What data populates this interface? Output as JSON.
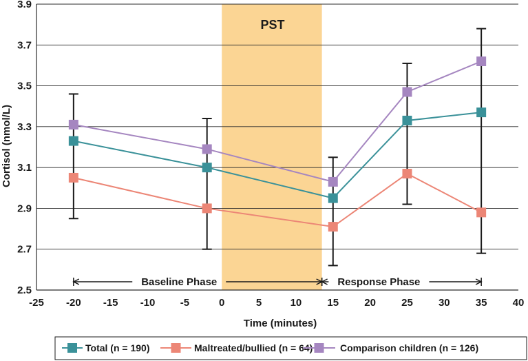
{
  "chart_data": {
    "type": "line",
    "xlabel": "Time (minutes)",
    "ylabel": "Cortisol (nmol/L)",
    "xlim": [
      -25,
      40
    ],
    "ylim": [
      2.5,
      3.9
    ],
    "x_ticks": [
      -25,
      -20,
      -15,
      -10,
      -5,
      0,
      5,
      10,
      15,
      20,
      25,
      30,
      35,
      40
    ],
    "y_ticks": [
      2.5,
      2.7,
      2.9,
      3.1,
      3.3,
      3.5,
      3.7,
      3.9
    ],
    "y_tick_labels": [
      "2.5",
      "2.7",
      "2.9",
      "3.1",
      "3.3",
      "3.5",
      "3.7",
      "3.9"
    ],
    "grid": "horizontal",
    "shaded_region": {
      "label": "PST",
      "x_range": [
        0,
        13.5
      ],
      "color": "#fbd594"
    },
    "phases": [
      {
        "label": "Baseline Phase",
        "x_range": [
          -20,
          13.5
        ]
      },
      {
        "label": "Response Phase",
        "x_range": [
          13.5,
          35
        ]
      }
    ],
    "x": [
      -20,
      -2,
      15,
      25,
      35
    ],
    "series": [
      {
        "name": "Total (n = 190)",
        "color": "#3a9199",
        "values": [
          3.23,
          3.1,
          2.95,
          3.33,
          3.37
        ]
      },
      {
        "name": "Maltreated/bullied (n = 64)",
        "color": "#ec8676",
        "values": [
          3.05,
          2.9,
          2.81,
          3.07,
          2.88
        ]
      },
      {
        "name": "Comparison children (n = 126)",
        "color": "#a586c0",
        "values": [
          3.31,
          3.19,
          3.03,
          3.47,
          3.62
        ]
      }
    ],
    "error_bars": [
      {
        "x": -20,
        "low": 2.85,
        "high": 3.46
      },
      {
        "x": -2,
        "low": 2.7,
        "high": 3.34
      },
      {
        "x": 15,
        "low": 2.62,
        "high": 3.15
      },
      {
        "x": 25,
        "low": 2.92,
        "high": 3.61
      },
      {
        "x": 35,
        "low": 2.68,
        "high": 3.78
      }
    ],
    "legend_position": "bottom"
  }
}
